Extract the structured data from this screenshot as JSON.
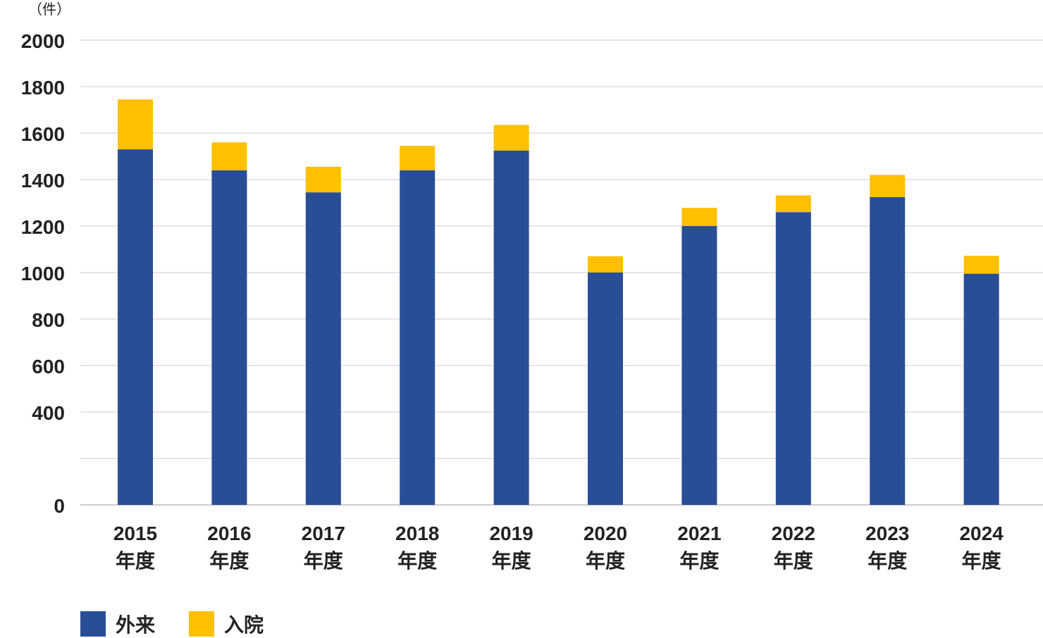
{
  "chart_data": {
    "type": "bar",
    "stacked": true,
    "unit_label": "（件）",
    "categories": [
      "2015",
      "2016",
      "2017",
      "2018",
      "2019",
      "2020",
      "2021",
      "2022",
      "2023",
      "2024"
    ],
    "category_suffix": "年度",
    "series": [
      {
        "name": "外来",
        "color": "#284e96",
        "values": [
          1530,
          1440,
          1345,
          1440,
          1525,
          1000,
          1200,
          1260,
          1325,
          995
        ]
      },
      {
        "name": "入院",
        "color": "#ffc000",
        "values": [
          215,
          120,
          110,
          105,
          110,
          70,
          78,
          72,
          95,
          77
        ]
      }
    ],
    "y_ticks": [
      0,
      400,
      600,
      800,
      1000,
      1200,
      1400,
      1600,
      1800,
      2000
    ],
    "ylim": [
      0,
      2000
    ],
    "grid": true,
    "legend_position": "bottom-left"
  }
}
